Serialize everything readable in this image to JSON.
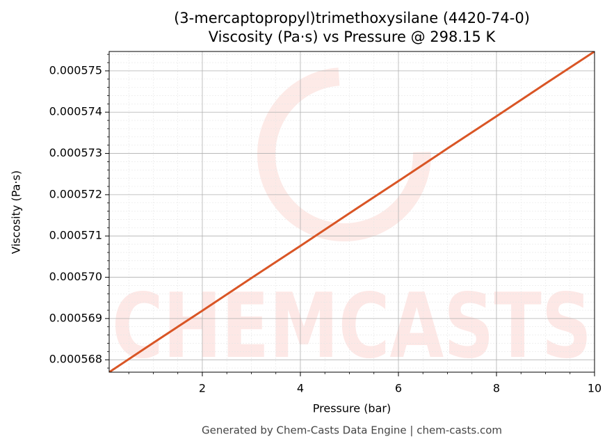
{
  "chart_data": {
    "type": "line",
    "title": "(3-mercaptopropyl)trimethoxysilane (4420-74-0)",
    "subtitle": "Viscosity (Pa·s) vs Pressure @ 298.15 K",
    "x_label": "Pressure (bar)",
    "y_label": "Viscosity (Pa·s)",
    "x": [
      0.1,
      1,
      2,
      3,
      4,
      5,
      6,
      7,
      8,
      9,
      10
    ],
    "series": [
      {
        "name": "Viscosity",
        "color": "#d95525",
        "values": [
          0.0005677,
          0.00056841,
          0.00056919,
          0.00056998,
          0.00057076,
          0.00057155,
          0.00057233,
          0.00057312,
          0.0005739,
          0.00057469,
          0.00057547
        ]
      }
    ],
    "xlim": [
      0.1,
      10
    ],
    "xticks": [
      2,
      4,
      6,
      8,
      10
    ],
    "ylim": [
      0.0005677,
      0.00057547
    ],
    "yticks": [
      0.000568,
      0.000569,
      {
        "value": 0.00057,
        "label": "0.000570"
      },
      0.000571,
      0.000572,
      0.000573,
      0.000574,
      0.000575
    ],
    "grid": true
  },
  "watermark": "CHEMCASTS",
  "footer": "Generated by Chem-Casts Data Engine | chem-casts.com"
}
